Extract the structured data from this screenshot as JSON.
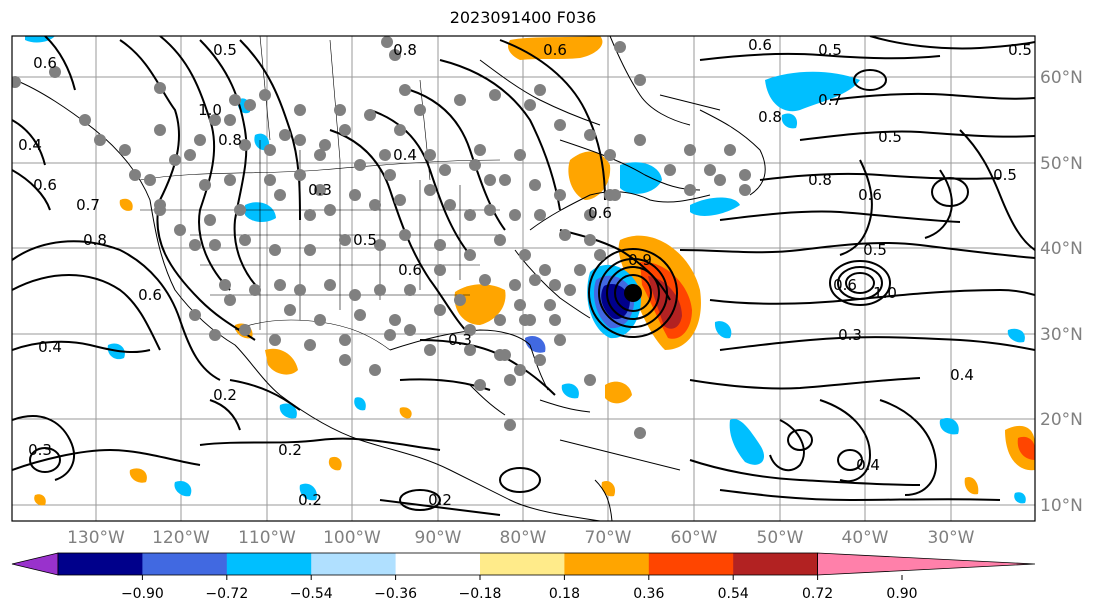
{
  "title": "2023091400 F036",
  "lon_labels": [
    "130°W",
    "120°W",
    "110°W",
    "100°W",
    "90°W",
    "80°W",
    "70°W",
    "60°W",
    "50°W",
    "40°W",
    "30°W"
  ],
  "lat_labels": [
    "60°N",
    "50°N",
    "40°N",
    "30°N",
    "20°N",
    "10°N"
  ],
  "colorbar": {
    "ticks": [
      "−0.90",
      "−0.72",
      "−0.54",
      "−0.36",
      "−0.18",
      "0.18",
      "0.36",
      "0.54",
      "0.72",
      "0.90"
    ],
    "colors": [
      "#9932cc",
      "#00008b",
      "#4169e1",
      "#00bfff",
      "#b0e0ff",
      "#ffffff",
      "#ffeb8a",
      "#ffa500",
      "#ff4500",
      "#b22222",
      "#ff80aa"
    ]
  },
  "contour_labels": [
    "0.5",
    "0.6",
    "0.8",
    "0.6",
    "0.5",
    "0.5",
    "0.6",
    "0.7",
    "0.8",
    "0.5",
    "1.0",
    "0.8",
    "0.4",
    "0.6",
    "0.7",
    "0.8",
    "0.3",
    "0.4",
    "0.6",
    "0.5",
    "0.6",
    "0.8",
    "0.6",
    "0.5",
    "0.6",
    "0.9",
    "0.5",
    "1.0",
    "0.6",
    "0.4",
    "0.3",
    "0.3",
    "0.4",
    "0.2",
    "0.2",
    "0.3",
    "0.4",
    "0.2",
    "0.2"
  ],
  "legend": {}
}
